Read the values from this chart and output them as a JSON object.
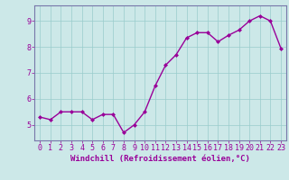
{
  "x": [
    0,
    1,
    2,
    3,
    4,
    5,
    6,
    7,
    8,
    9,
    10,
    11,
    12,
    13,
    14,
    15,
    16,
    17,
    18,
    19,
    20,
    21,
    22,
    23
  ],
  "y": [
    5.3,
    5.2,
    5.5,
    5.5,
    5.5,
    5.2,
    5.4,
    5.4,
    4.7,
    5.0,
    5.5,
    6.5,
    7.3,
    7.7,
    8.35,
    8.55,
    8.55,
    8.2,
    8.45,
    8.65,
    9.0,
    9.2,
    9.0,
    7.95
  ],
  "line_color": "#990099",
  "marker": "D",
  "marker_size": 2,
  "line_width": 1.0,
  "xlabel": "Windchill (Refroidissement éolien,°C)",
  "xlabel_fontsize": 6.5,
  "xlabel_color": "#990099",
  "ylabel_ticks": [
    5,
    6,
    7,
    8,
    9
  ],
  "ylim": [
    4.4,
    9.6
  ],
  "xlim": [
    -0.5,
    23.5
  ],
  "background_color": "#cce8e8",
  "grid_color": "#99cccc",
  "tick_fontsize": 6,
  "tick_color": "#990099",
  "spine_color": "#7777aa"
}
